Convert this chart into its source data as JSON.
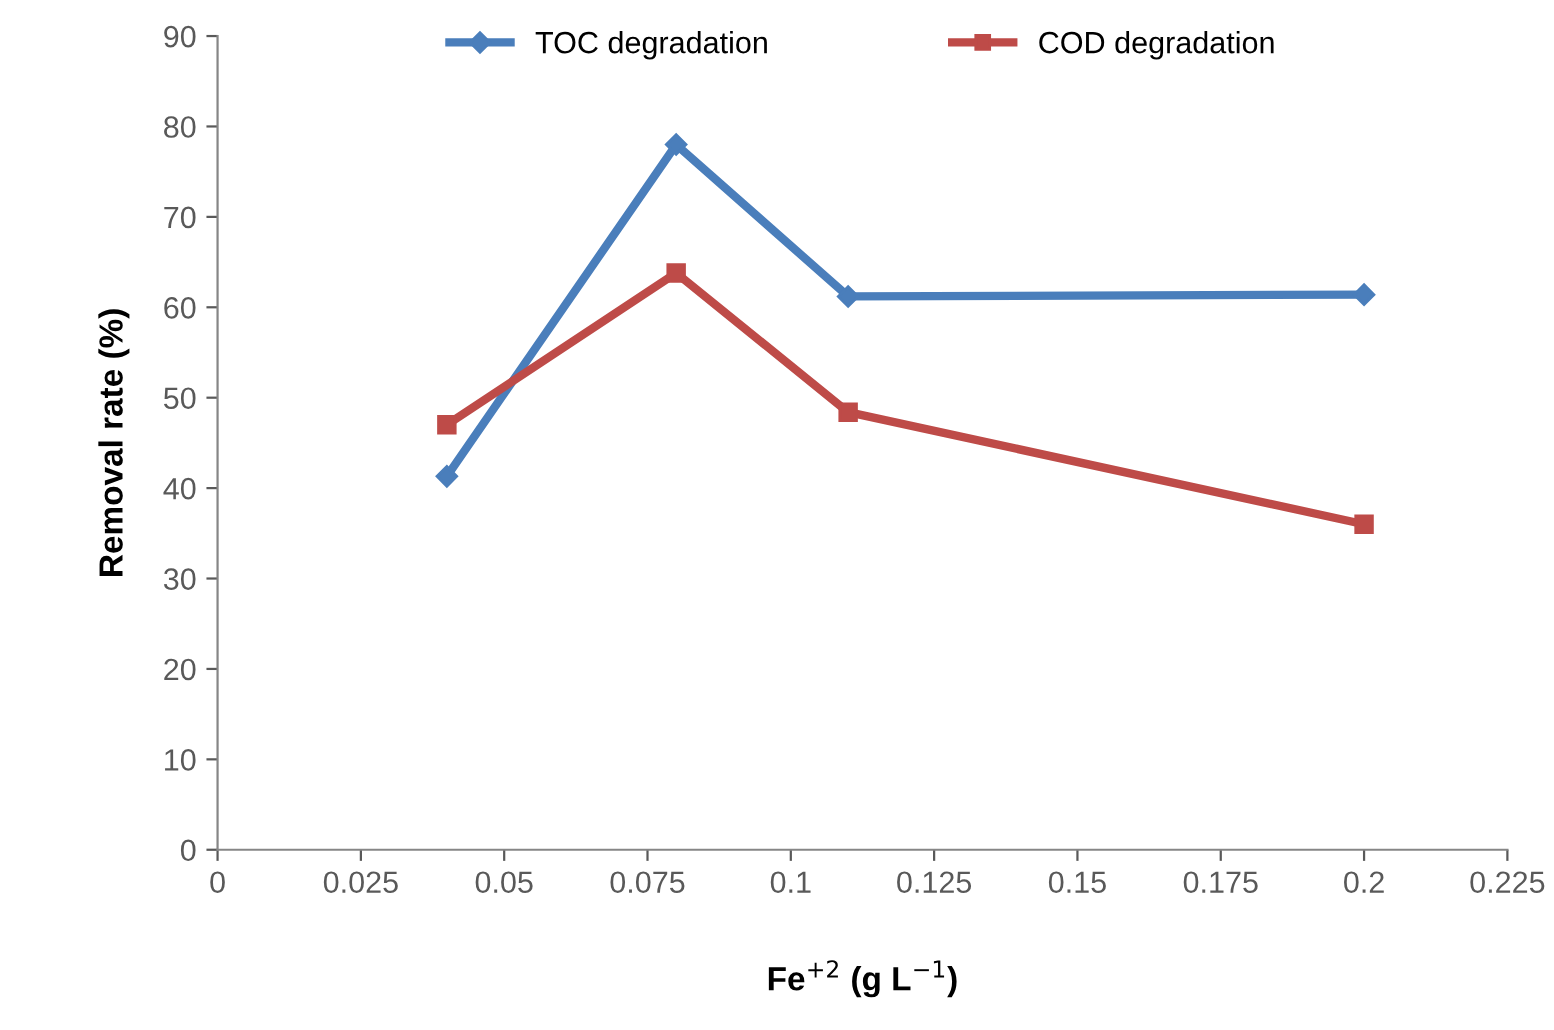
{
  "chart_data": {
    "type": "line",
    "xlabel": "Fe$^{+2}$ (g L$^{−1}$)",
    "ylabel": "Removal rate (%)",
    "x": [
      0.04,
      0.08,
      0.11,
      0.2
    ],
    "series": [
      {
        "name": "TOC degradation",
        "color": "#4a7ebb",
        "marker": "diamond",
        "values": [
          41.3,
          78,
          61.2,
          61.4
        ]
      },
      {
        "name": "COD degradation",
        "color": "#be4b48",
        "marker": "square",
        "values": [
          47,
          63.8,
          48.4,
          36
        ]
      }
    ],
    "xlim": [
      0,
      0.225
    ],
    "xticks": [
      0,
      0.025,
      0.05,
      0.075,
      0.1,
      0.125,
      0.15,
      0.175,
      0.2,
      0.225
    ],
    "ylim": [
      0,
      90
    ],
    "yticks": [
      0,
      10,
      20,
      30,
      40,
      50,
      60,
      70,
      80,
      90
    ],
    "grid": false,
    "legend": "top",
    "line_style": "solid"
  }
}
